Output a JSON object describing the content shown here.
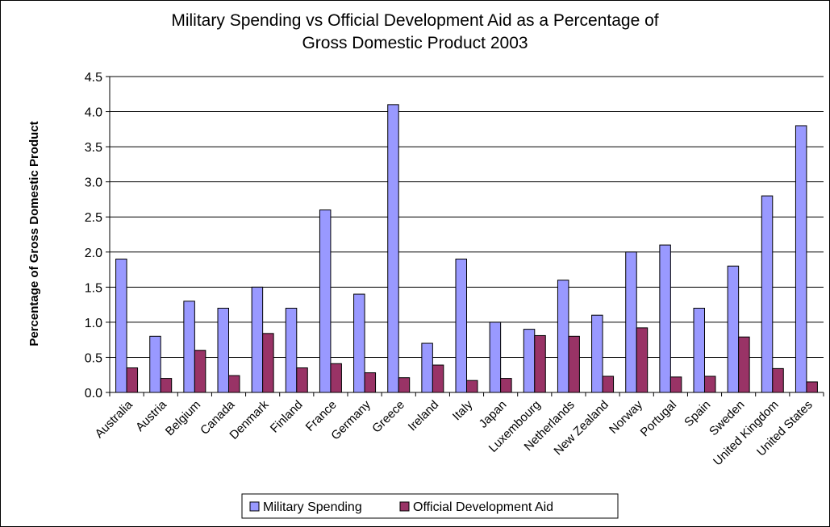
{
  "chart_data": {
    "type": "bar",
    "title_line1": "Military Spending vs Official Development Aid as a Percentage of",
    "title_line2": "Gross Domestic Product 2003",
    "xlabel": "",
    "ylabel": "Percentage of Gross Domestic Product",
    "ylim": [
      0,
      4.5
    ],
    "yticks": [
      "0.0",
      "0.5",
      "1.0",
      "1.5",
      "2.0",
      "2.5",
      "3.0",
      "3.5",
      "4.0",
      "4.5"
    ],
    "ytick_values": [
      0,
      0.5,
      1.0,
      1.5,
      2.0,
      2.5,
      3.0,
      3.5,
      4.0,
      4.5
    ],
    "grid": true,
    "legend_position": "bottom",
    "categories": [
      "Australia",
      "Austria",
      "Belgium",
      "Canada",
      "Denmark",
      "Finland",
      "France",
      "Germany",
      "Greece",
      "Ireland",
      "Italy",
      "Japan",
      "Luxembourg",
      "Netherlands",
      "New Zealand",
      "Norway",
      "Portugal",
      "Spain",
      "Sweden",
      "United Kingdom",
      "United States"
    ],
    "series": [
      {
        "name": "Military Spending",
        "color": "#9999ff",
        "values": [
          1.9,
          0.8,
          1.3,
          1.2,
          1.5,
          1.2,
          2.6,
          1.4,
          4.1,
          0.7,
          1.9,
          1.0,
          0.9,
          1.6,
          1.1,
          2.0,
          2.1,
          1.2,
          1.8,
          2.8,
          3.8
        ]
      },
      {
        "name": "Official Development Aid",
        "color": "#993366",
        "values": [
          0.35,
          0.2,
          0.6,
          0.24,
          0.84,
          0.35,
          0.41,
          0.28,
          0.21,
          0.39,
          0.17,
          0.2,
          0.81,
          0.8,
          0.23,
          0.92,
          0.22,
          0.23,
          0.79,
          0.34,
          0.15
        ]
      }
    ]
  }
}
